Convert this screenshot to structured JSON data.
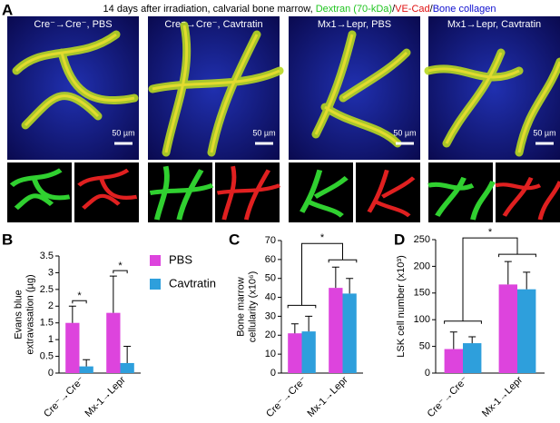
{
  "panel_a": {
    "letter": "A",
    "title_parts": [
      {
        "text": "14 days after irradiation, calvarial bone marrow, ",
        "color": "#000000"
      },
      {
        "text": "Dextran (70-kDa)",
        "color": "#1fc41f"
      },
      {
        "text": "/",
        "color": "#000000"
      },
      {
        "text": "VE-Cad",
        "color": "#e01010"
      },
      {
        "text": "/",
        "color": "#000000"
      },
      {
        "text": "Bone collagen",
        "color": "#1010d0"
      }
    ],
    "panels": [
      {
        "label": "Cre⁻→Cre⁻, PBS",
        "scale": "50 µm"
      },
      {
        "label": "Cre⁻→Cre⁻, Cavtratin",
        "scale": "50 µm"
      },
      {
        "label": "Mx1→Lepr, PBS",
        "scale": "50 µm"
      },
      {
        "label": "Mx1→Lepr, Cavtratin",
        "scale": "50 µm"
      }
    ]
  },
  "chart_data": [
    {
      "letter": "B",
      "type": "bar",
      "ylabel": [
        "Evans blue",
        "extravasation (µg)"
      ],
      "categories": [
        "Cre⁻→Cre⁻",
        "Mx-1→Lepr"
      ],
      "series": [
        {
          "name": "PBS",
          "color": "#dd44dd",
          "values": [
            1.5,
            1.8
          ],
          "errors": [
            0.5,
            1.1
          ]
        },
        {
          "name": "Cavtratin",
          "color": "#2e9fdc",
          "values": [
            0.2,
            0.3
          ],
          "errors": [
            0.2,
            0.5
          ]
        }
      ],
      "ylim": [
        0,
        3.5
      ],
      "yticks": [
        0,
        0.5,
        1,
        1.5,
        2,
        2.5,
        3,
        3.5
      ],
      "legend": true,
      "brackets": "within",
      "annotations": [
        "*",
        "*"
      ]
    },
    {
      "letter": "C",
      "type": "bar",
      "ylabel": [
        "Bone marrow",
        "cellularity (x10⁶)"
      ],
      "categories": [
        "Cre⁻→Cre⁻",
        "Mx-1→Lepr"
      ],
      "series": [
        {
          "name": "PBS",
          "color": "#dd44dd",
          "values": [
            21,
            45
          ],
          "errors": [
            5,
            11
          ]
        },
        {
          "name": "Cavtratin",
          "color": "#2e9fdc",
          "values": [
            22,
            42
          ],
          "errors": [
            8,
            8
          ]
        }
      ],
      "ylim": [
        0,
        70
      ],
      "yticks": [
        0,
        10,
        20,
        30,
        40,
        50,
        60,
        70
      ],
      "legend": false,
      "brackets": "between",
      "annotations": [
        "*"
      ]
    },
    {
      "letter": "D",
      "type": "bar",
      "ylabel": [
        "LSK cell number (x10³)"
      ],
      "categories": [
        "Cre⁻→Cre⁻",
        "Mx-1→Lepr"
      ],
      "series": [
        {
          "name": "PBS",
          "color": "#dd44dd",
          "values": [
            45,
            166
          ],
          "errors": [
            32,
            43
          ]
        },
        {
          "name": "Cavtratin",
          "color": "#2e9fdc",
          "values": [
            56,
            157
          ],
          "errors": [
            12,
            32
          ]
        }
      ],
      "ylim": [
        0,
        250
      ],
      "yticks": [
        0,
        50,
        100,
        150,
        200,
        250
      ],
      "legend": false,
      "brackets": "between",
      "annotations": [
        "*"
      ]
    }
  ]
}
